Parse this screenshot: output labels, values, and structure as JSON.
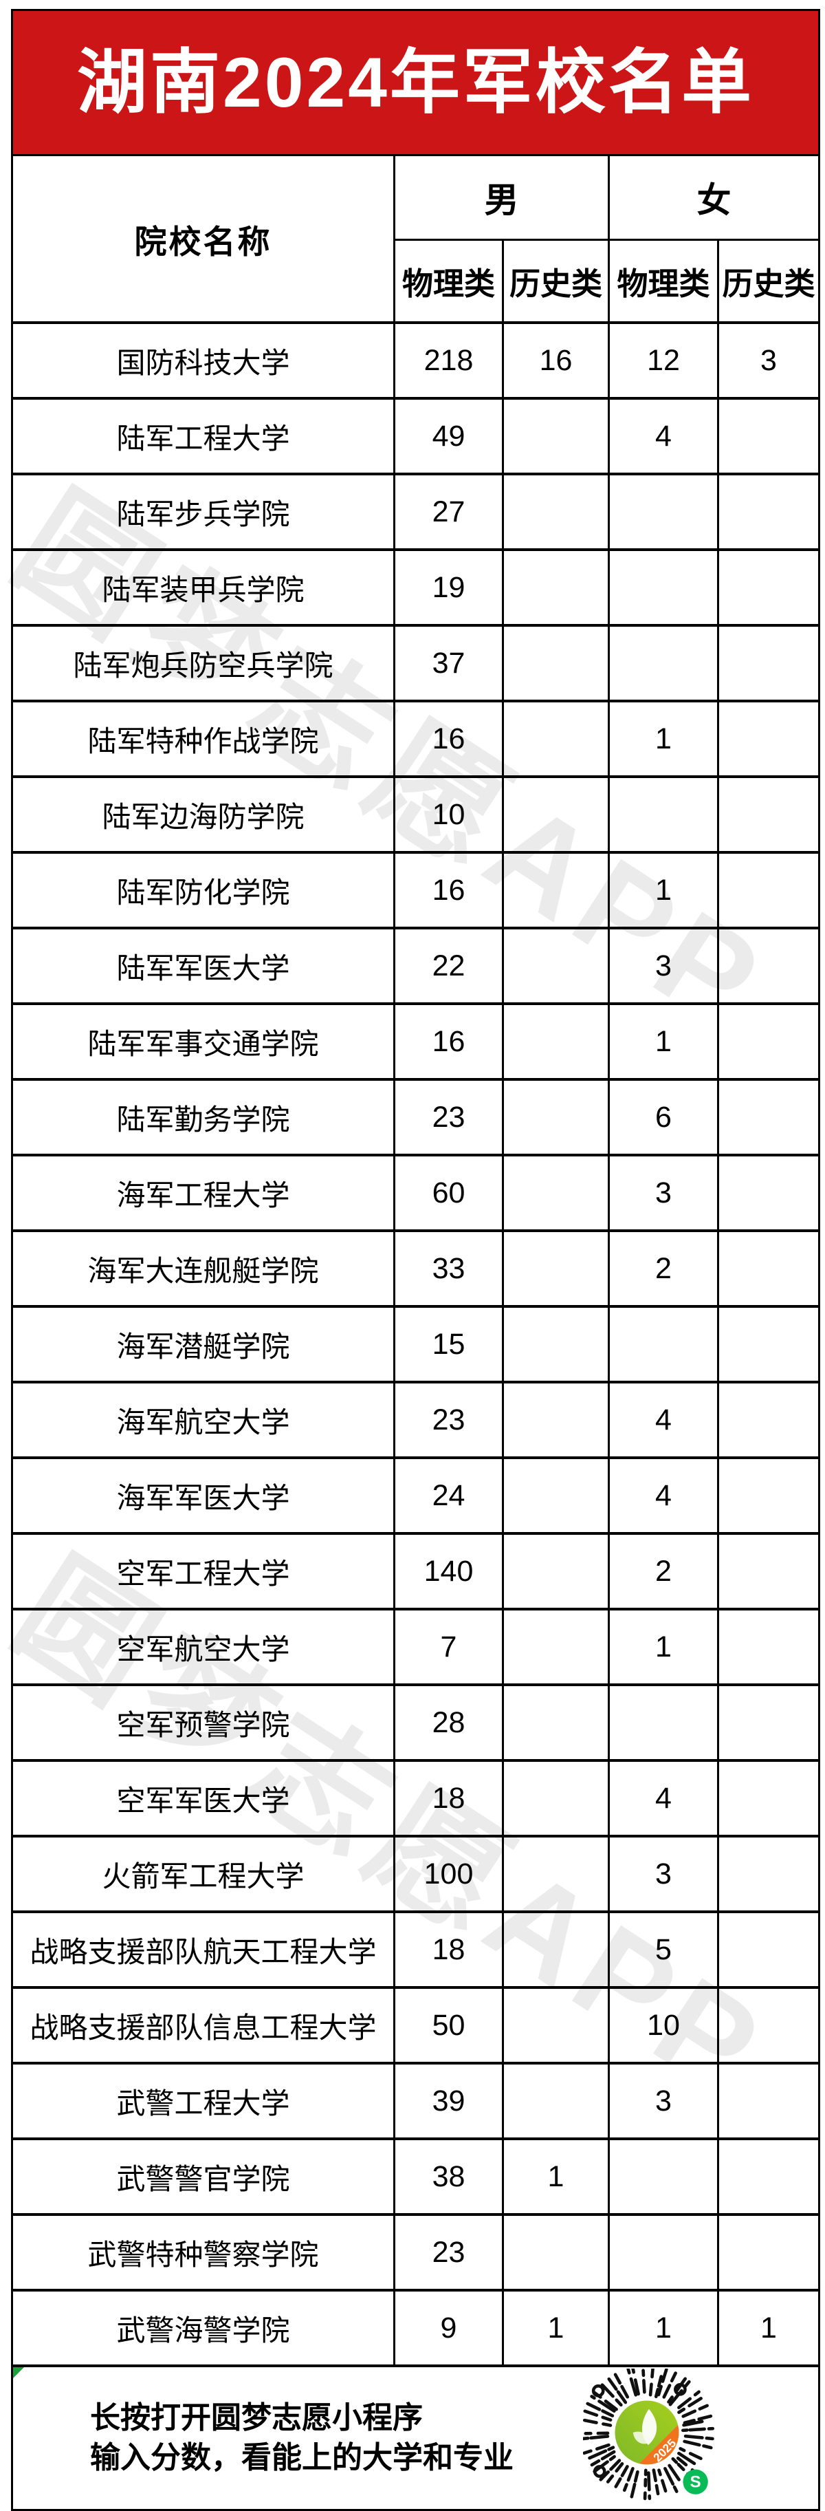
{
  "title": "湖南2024年军校名单",
  "watermark": "圆梦志愿APP",
  "colors": {
    "banner_red": "#cb1517",
    "qr_green": "#7fb928",
    "qr_green_light": "#a6cf1e",
    "qr_orange": "#f2731d",
    "badge_green": "#09bb57"
  },
  "table": {
    "name_header": "院校名称",
    "group_headers": [
      "男",
      "女"
    ],
    "sub_headers": [
      "物理类",
      "历史类",
      "物理类",
      "历史类"
    ],
    "rows": [
      {
        "name": "国防科技大学",
        "mp": "218",
        "mh": "16",
        "fp": "12",
        "fh": "3"
      },
      {
        "name": "陆军工程大学",
        "mp": "49",
        "mh": "",
        "fp": "4",
        "fh": ""
      },
      {
        "name": "陆军步兵学院",
        "mp": "27",
        "mh": "",
        "fp": "",
        "fh": ""
      },
      {
        "name": "陆军装甲兵学院",
        "mp": "19",
        "mh": "",
        "fp": "",
        "fh": ""
      },
      {
        "name": "陆军炮兵防空兵学院",
        "mp": "37",
        "mh": "",
        "fp": "",
        "fh": ""
      },
      {
        "name": "陆军特种作战学院",
        "mp": "16",
        "mh": "",
        "fp": "1",
        "fh": ""
      },
      {
        "name": "陆军边海防学院",
        "mp": "10",
        "mh": "",
        "fp": "",
        "fh": ""
      },
      {
        "name": "陆军防化学院",
        "mp": "16",
        "mh": "",
        "fp": "1",
        "fh": ""
      },
      {
        "name": "陆军军医大学",
        "mp": "22",
        "mh": "",
        "fp": "3",
        "fh": ""
      },
      {
        "name": "陆军军事交通学院",
        "mp": "16",
        "mh": "",
        "fp": "1",
        "fh": ""
      },
      {
        "name": "陆军勤务学院",
        "mp": "23",
        "mh": "",
        "fp": "6",
        "fh": ""
      },
      {
        "name": "海军工程大学",
        "mp": "60",
        "mh": "",
        "fp": "3",
        "fh": ""
      },
      {
        "name": "海军大连舰艇学院",
        "mp": "33",
        "mh": "",
        "fp": "2",
        "fh": ""
      },
      {
        "name": "海军潜艇学院",
        "mp": "15",
        "mh": "",
        "fp": "",
        "fh": ""
      },
      {
        "name": "海军航空大学",
        "mp": "23",
        "mh": "",
        "fp": "4",
        "fh": ""
      },
      {
        "name": "海军军医大学",
        "mp": "24",
        "mh": "",
        "fp": "4",
        "fh": ""
      },
      {
        "name": "空军工程大学",
        "mp": "140",
        "mh": "",
        "fp": "2",
        "fh": ""
      },
      {
        "name": "空军航空大学",
        "mp": "7",
        "mh": "",
        "fp": "1",
        "fh": ""
      },
      {
        "name": "空军预警学院",
        "mp": "28",
        "mh": "",
        "fp": "",
        "fh": ""
      },
      {
        "name": "空军军医大学",
        "mp": "18",
        "mh": "",
        "fp": "4",
        "fh": ""
      },
      {
        "name": "火箭军工程大学",
        "mp": "100",
        "mh": "",
        "fp": "3",
        "fh": ""
      },
      {
        "name": "战略支援部队航天工程大学",
        "mp": "18",
        "mh": "",
        "fp": "5",
        "fh": ""
      },
      {
        "name": "战略支援部队信息工程大学",
        "mp": "50",
        "mh": "",
        "fp": "10",
        "fh": ""
      },
      {
        "name": "武警工程大学",
        "mp": "39",
        "mh": "",
        "fp": "3",
        "fh": ""
      },
      {
        "name": "武警警官学院",
        "mp": "38",
        "mh": "1",
        "fp": "",
        "fh": ""
      },
      {
        "name": "武警特种警察学院",
        "mp": "23",
        "mh": "",
        "fp": "",
        "fh": ""
      },
      {
        "name": "武警海警学院",
        "mp": "9",
        "mh": "1",
        "fp": "1",
        "fh": "1"
      }
    ]
  },
  "footer": {
    "line1": "长按打开圆梦志愿小程序",
    "line2": "输入分数，看能上的大学和专业",
    "qr_ribbon": "2025",
    "mini_program_glyph": "S"
  }
}
